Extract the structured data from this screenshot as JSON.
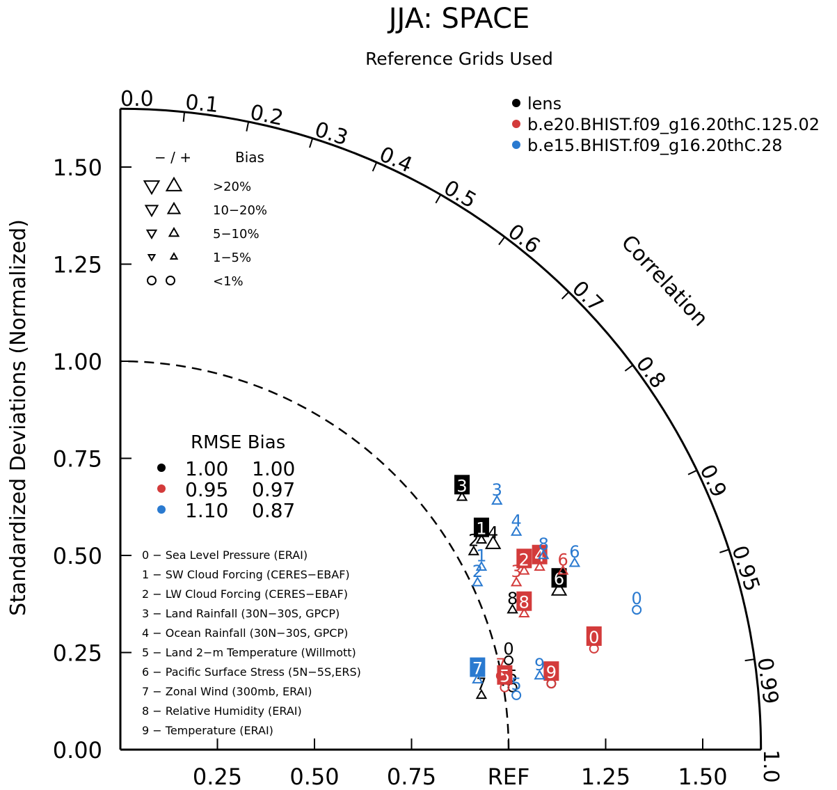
{
  "chart_data": {
    "type": "taylor",
    "title": "JJA: SPACE",
    "subtitle": "Reference Grids Used",
    "ylabel": "Standardized Deviations (Normalized)",
    "correlation_label": "Correlation",
    "ref_label": "REF",
    "std_range": [
      0,
      1.65
    ],
    "x_tick_labels": [
      "0.25",
      "0.50",
      "0.75",
      "REF",
      "1.25",
      "1.50"
    ],
    "x_tick_values": [
      0.25,
      0.5,
      0.75,
      1.0,
      1.25,
      1.5
    ],
    "y_tick_labels": [
      "0.00",
      "0.25",
      "0.50",
      "0.75",
      "1.00",
      "1.25",
      "1.50"
    ],
    "y_tick_values": [
      0,
      0.25,
      0.5,
      0.75,
      1.0,
      1.25,
      1.5
    ],
    "corr_tick_labels": [
      "0.0",
      "0.1",
      "0.2",
      "0.3",
      "0.4",
      "0.5",
      "0.6",
      "0.7",
      "0.8",
      "0.9",
      "0.95",
      "0.99",
      "1.0"
    ],
    "corr_tick_values": [
      0.0,
      0.1,
      0.2,
      0.3,
      0.4,
      0.5,
      0.6,
      0.7,
      0.8,
      0.9,
      0.95,
      0.99,
      1.0
    ],
    "cases": [
      {
        "name": "lens",
        "color": "#000000"
      },
      {
        "name": "b.e20.BHIST.f09_g16.20thC.125.02",
        "color": "#d33b3b"
      },
      {
        "name": "b.e15.BHIST.f09_g16.20thC.28",
        "color": "#2a7ad0"
      }
    ],
    "bias_legend": {
      "header_sign": "− / +",
      "header_label": "Bias",
      "rows": [
        {
          "label": ">20%",
          "size": "xl"
        },
        {
          "label": "10−20%",
          "size": "lg"
        },
        {
          "label": "5−10%",
          "size": "md"
        },
        {
          "label": "1−5%",
          "size": "sm"
        },
        {
          "label": "<1%",
          "size": "circle"
        }
      ]
    },
    "summary_table": {
      "header": "RMSE Bias",
      "rows": [
        {
          "color": "#000000",
          "rmse": "1.00",
          "bias": "1.00"
        },
        {
          "color": "#d33b3b",
          "rmse": "0.95",
          "bias": "0.97"
        },
        {
          "color": "#2a7ad0",
          "rmse": "1.10",
          "bias": "0.87"
        }
      ]
    },
    "variables": [
      "0 − Sea Level Pressure (ERAI)",
      "1 − SW Cloud Forcing (CERES−EBAF)",
      "2 − LW Cloud Forcing (CERES−EBAF)",
      "3 − Land Rainfall (30N−30S, GPCP)",
      "4 − Ocean Rainfall (30N−30S, GPCP)",
      "5 − Land 2−m Temperature (Willmott)",
      "6 − Pacific Surface Stress (5N−5S,ERS)",
      "7 − Zonal Wind (300mb, ERAI)",
      "8 − Relative Humidity (ERAI)",
      "9 − Temperature (ERAI)"
    ],
    "points": [
      {
        "case": 0,
        "id": "0",
        "x": 1.0,
        "y": 0.23,
        "marker": "circle",
        "box": false
      },
      {
        "case": 0,
        "id": "1",
        "x": 0.93,
        "y": 0.54,
        "marker": "tri-up",
        "box": true
      },
      {
        "case": 0,
        "id": "2",
        "x": 0.91,
        "y": 0.51,
        "marker": "tri-up",
        "box": false
      },
      {
        "case": 0,
        "id": "3",
        "x": 0.88,
        "y": 0.65,
        "marker": "tri-up",
        "box": true
      },
      {
        "case": 0,
        "id": "4",
        "x": 0.96,
        "y": 0.53,
        "marker": "tri-up",
        "box": false
      },
      {
        "case": 0,
        "id": "5",
        "x": 1.01,
        "y": 0.16,
        "marker": "circle",
        "box": false
      },
      {
        "case": 0,
        "id": "6",
        "x": 1.13,
        "y": 0.41,
        "marker": "tri-up",
        "box": true
      },
      {
        "case": 0,
        "id": "7",
        "x": 0.93,
        "y": 0.14,
        "marker": "tri-up",
        "box": false
      },
      {
        "case": 0,
        "id": "8",
        "x": 1.01,
        "y": 0.36,
        "marker": "tri-up",
        "box": false
      },
      {
        "case": 0,
        "id": "9",
        "x": 1.11,
        "y": 0.17,
        "marker": "circle",
        "box": false
      },
      {
        "case": 1,
        "id": "0",
        "x": 1.22,
        "y": 0.26,
        "marker": "circle",
        "box": true
      },
      {
        "case": 1,
        "id": "2",
        "x": 1.04,
        "y": 0.46,
        "marker": "tri-up",
        "box": true
      },
      {
        "case": 1,
        "id": "3",
        "x": 1.02,
        "y": 0.43,
        "marker": "tri-up",
        "box": false
      },
      {
        "case": 1,
        "id": "4",
        "x": 1.08,
        "y": 0.47,
        "marker": "tri-up",
        "box": true
      },
      {
        "case": 1,
        "id": "5",
        "x": 0.99,
        "y": 0.16,
        "marker": "circle",
        "box": true
      },
      {
        "case": 1,
        "id": "6",
        "x": 1.14,
        "y": 0.46,
        "marker": "tri-up",
        "box": false
      },
      {
        "case": 1,
        "id": "7",
        "x": 0.98,
        "y": 0.19,
        "marker": "circle",
        "box": false
      },
      {
        "case": 1,
        "id": "8",
        "x": 1.04,
        "y": 0.35,
        "marker": "tri-up",
        "box": true
      },
      {
        "case": 1,
        "id": "9",
        "x": 1.11,
        "y": 0.17,
        "marker": "circle",
        "box": true
      },
      {
        "case": 2,
        "id": "0",
        "x": 1.33,
        "y": 0.36,
        "marker": "circle",
        "box": false
      },
      {
        "case": 2,
        "id": "1",
        "x": 0.93,
        "y": 0.47,
        "marker": "tri-up",
        "box": false
      },
      {
        "case": 2,
        "id": "2",
        "x": 0.92,
        "y": 0.43,
        "marker": "tri-up",
        "box": false
      },
      {
        "case": 2,
        "id": "3",
        "x": 0.97,
        "y": 0.64,
        "marker": "tri-up",
        "box": false
      },
      {
        "case": 2,
        "id": "4",
        "x": 1.02,
        "y": 0.56,
        "marker": "tri-up",
        "box": false
      },
      {
        "case": 2,
        "id": "5",
        "x": 1.02,
        "y": 0.14,
        "marker": "circle",
        "box": false
      },
      {
        "case": 2,
        "id": "6",
        "x": 1.17,
        "y": 0.48,
        "marker": "tri-up",
        "box": false
      },
      {
        "case": 2,
        "id": "7",
        "x": 0.92,
        "y": 0.18,
        "marker": "tri-up",
        "box": true
      },
      {
        "case": 2,
        "id": "8",
        "x": 1.09,
        "y": 0.5,
        "marker": "tri-up",
        "box": false
      },
      {
        "case": 2,
        "id": "9",
        "x": 1.08,
        "y": 0.19,
        "marker": "tri-up",
        "box": false
      }
    ]
  }
}
